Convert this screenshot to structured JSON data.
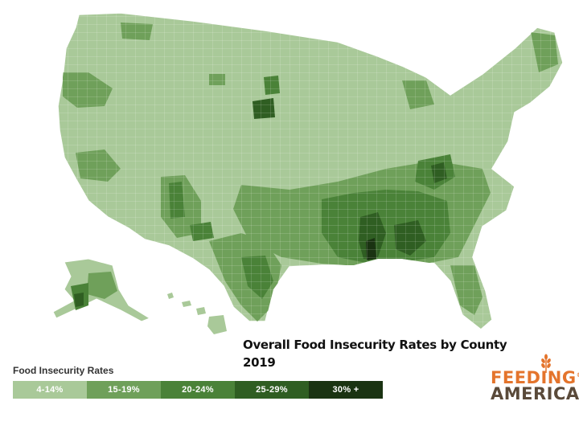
{
  "title": {
    "line1": "Overall Food Insecurity Rates by County",
    "line2": "2019"
  },
  "legend": {
    "title": "Food Insecurity Rates",
    "bins": [
      {
        "label": "4-14%",
        "color": "#a9c999",
        "text_color": "#ffffff"
      },
      {
        "label": "15-19%",
        "color": "#6fa05a",
        "text_color": "#ffffff"
      },
      {
        "label": "20-24%",
        "color": "#4a8238",
        "text_color": "#ffffff"
      },
      {
        "label": "25-29%",
        "color": "#2f5e22",
        "text_color": "#ffffff"
      },
      {
        "label": "30% +",
        "color": "#1a3312",
        "text_color": "#ffffff"
      }
    ]
  },
  "logo": {
    "line1": "FEEDING",
    "line2": "AMERICA",
    "trademark": "®"
  },
  "map": {
    "regions": [
      "contiguous-us",
      "alaska",
      "hawaii"
    ],
    "base_color": "#a9c999",
    "border_color": "#ffffff"
  }
}
